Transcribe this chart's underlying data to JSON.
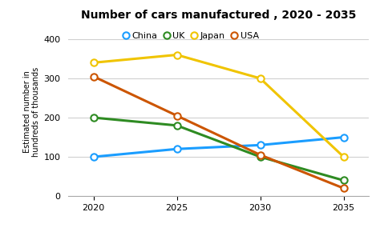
{
  "title": "Number of cars manufactured , 2020 - 2035",
  "ylabel": "Estimated number in\nhundreds of thousands",
  "xlabel": "",
  "x": [
    2020,
    2025,
    2030,
    2035
  ],
  "series": [
    {
      "label": "China",
      "values": [
        100,
        120,
        130,
        150
      ],
      "color": "#1a9dff"
    },
    {
      "label": "UK",
      "values": [
        200,
        180,
        100,
        40
      ],
      "color": "#2e8b22"
    },
    {
      "label": "Japan",
      "values": [
        340,
        360,
        300,
        100
      ],
      "color": "#f0c400"
    },
    {
      "label": "USA",
      "values": [
        305,
        205,
        105,
        20
      ],
      "color": "#cc5500"
    }
  ],
  "ylim": [
    0,
    430
  ],
  "yticks": [
    0,
    100,
    200,
    300,
    400
  ],
  "xlim": [
    2018.5,
    2036.5
  ],
  "xticks": [
    2020,
    2025,
    2030,
    2035
  ],
  "background_color": "#ffffff",
  "grid_color": "#d0d0d0",
  "title_fontsize": 10,
  "axis_label_fontsize": 7,
  "tick_fontsize": 8,
  "legend_fontsize": 8,
  "linewidth": 2.2,
  "markersize": 6,
  "markeredgewidth": 1.5
}
